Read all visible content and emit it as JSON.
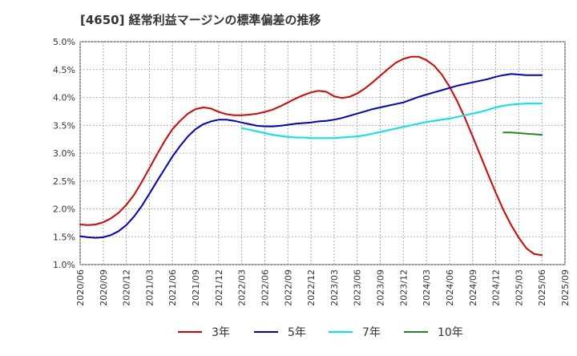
{
  "chart_data": {
    "type": "line",
    "title": "[4650]  経常利益マージンの標準偏差の推移",
    "xlabel": "",
    "ylabel": "",
    "ylim": [
      0.01,
      0.05
    ],
    "yticks": [
      "1.0%",
      "1.5%",
      "2.0%",
      "2.5%",
      "3.0%",
      "3.5%",
      "4.0%",
      "4.5%",
      "5.0%"
    ],
    "yticks_values": [
      0.01,
      0.015,
      0.02,
      0.025,
      0.03,
      0.035,
      0.04,
      0.045,
      0.05
    ],
    "xticks": [
      "2020/06",
      "2020/09",
      "2020/12",
      "2021/03",
      "2021/06",
      "2021/09",
      "2021/12",
      "2022/03",
      "2022/06",
      "2022/09",
      "2022/12",
      "2023/03",
      "2023/06",
      "2023/09",
      "2023/12",
      "2024/03",
      "2024/06",
      "2024/09",
      "2024/12",
      "2025/03",
      "2025/06",
      "2025/09"
    ],
    "grid": true,
    "legend_position": "bottom",
    "series": [
      {
        "name": "3年",
        "color": "#dd0000",
        "x": [
          "2020/06",
          "2020/07",
          "2020/08",
          "2020/09",
          "2020/10",
          "2020/11",
          "2020/12",
          "2021/01",
          "2021/02",
          "2021/03",
          "2021/04",
          "2021/05",
          "2021/06",
          "2021/07",
          "2021/08",
          "2021/09",
          "2021/10",
          "2021/11",
          "2021/12",
          "2022/01",
          "2022/02",
          "2022/03",
          "2022/04",
          "2022/05",
          "2022/06",
          "2022/07",
          "2022/08",
          "2022/09",
          "2022/10",
          "2022/11",
          "2022/12",
          "2023/01",
          "2023/02",
          "2023/03",
          "2023/04",
          "2023/05",
          "2023/06",
          "2023/07",
          "2023/08",
          "2023/09",
          "2023/10",
          "2023/11",
          "2023/12",
          "2024/01",
          "2024/02",
          "2024/03",
          "2024/04",
          "2024/05",
          "2024/06",
          "2024/07",
          "2024/08",
          "2024/09",
          "2024/10",
          "2024/11",
          "2024/12",
          "2025/01",
          "2025/02",
          "2025/03",
          "2025/04",
          "2025/05",
          "2025/06"
        ],
        "values": [
          0.0172,
          0.0171,
          0.0172,
          0.0176,
          0.0183,
          0.0193,
          0.0207,
          0.0225,
          0.0248,
          0.0273,
          0.0298,
          0.0322,
          0.0343,
          0.0358,
          0.0371,
          0.0379,
          0.0382,
          0.038,
          0.0374,
          0.037,
          0.0368,
          0.0368,
          0.0369,
          0.0371,
          0.0374,
          0.0378,
          0.0384,
          0.0391,
          0.0398,
          0.0404,
          0.0409,
          0.0412,
          0.041,
          0.0402,
          0.0399,
          0.0401,
          0.0407,
          0.0416,
          0.0427,
          0.0439,
          0.0451,
          0.0462,
          0.0469,
          0.0473,
          0.0473,
          0.0467,
          0.0457,
          0.0441,
          0.0419,
          0.0393,
          0.0363,
          0.033,
          0.0296,
          0.0262,
          0.0229,
          0.0198,
          0.0171,
          0.0148,
          0.0129,
          0.0119,
          0.0117
        ]
      },
      {
        "name": "5年",
        "color": "#0000cc",
        "x": [
          "2020/06",
          "2020/07",
          "2020/08",
          "2020/09",
          "2020/10",
          "2020/11",
          "2020/12",
          "2021/01",
          "2021/02",
          "2021/03",
          "2021/04",
          "2021/05",
          "2021/06",
          "2021/07",
          "2021/08",
          "2021/09",
          "2021/10",
          "2021/11",
          "2021/12",
          "2022/01",
          "2022/02",
          "2022/03",
          "2022/04",
          "2022/05",
          "2022/06",
          "2022/07",
          "2022/08",
          "2022/09",
          "2022/10",
          "2022/11",
          "2022/12",
          "2023/01",
          "2023/02",
          "2023/03",
          "2023/04",
          "2023/05",
          "2023/06",
          "2023/07",
          "2023/08",
          "2023/09",
          "2023/10",
          "2023/11",
          "2023/12",
          "2024/01",
          "2024/02",
          "2024/03",
          "2024/04",
          "2024/05",
          "2024/06",
          "2024/07",
          "2024/08",
          "2024/09",
          "2024/10",
          "2024/11",
          "2024/12",
          "2025/01",
          "2025/02",
          "2025/03",
          "2025/04",
          "2025/05",
          "2025/06"
        ],
        "values": [
          0.0151,
          0.0149,
          0.0148,
          0.0149,
          0.0153,
          0.016,
          0.0171,
          0.0186,
          0.0205,
          0.0227,
          0.025,
          0.0272,
          0.0294,
          0.0313,
          0.033,
          0.0343,
          0.0352,
          0.0357,
          0.036,
          0.036,
          0.0358,
          0.0355,
          0.0352,
          0.0349,
          0.0348,
          0.0348,
          0.0349,
          0.0351,
          0.0353,
          0.0354,
          0.0355,
          0.0357,
          0.0358,
          0.036,
          0.0363,
          0.0367,
          0.0371,
          0.0375,
          0.0379,
          0.0382,
          0.0385,
          0.0388,
          0.0391,
          0.0396,
          0.0401,
          0.0405,
          0.0409,
          0.0413,
          0.0417,
          0.0421,
          0.0424,
          0.0427,
          0.043,
          0.0433,
          0.0437,
          0.044,
          0.0442,
          0.0441,
          0.044,
          0.044,
          0.044
        ]
      },
      {
        "name": "7年",
        "color": "#00e5e5",
        "x": [
          "2022/03",
          "2022/04",
          "2022/05",
          "2022/06",
          "2022/07",
          "2022/08",
          "2022/09",
          "2022/10",
          "2022/11",
          "2022/12",
          "2023/01",
          "2023/02",
          "2023/03",
          "2023/04",
          "2023/05",
          "2023/06",
          "2023/07",
          "2023/08",
          "2023/09",
          "2023/10",
          "2023/11",
          "2023/12",
          "2024/01",
          "2024/02",
          "2024/03",
          "2024/04",
          "2024/05",
          "2024/06",
          "2024/07",
          "2024/08",
          "2024/09",
          "2024/10",
          "2024/11",
          "2024/12",
          "2025/01",
          "2025/02",
          "2025/03",
          "2025/04",
          "2025/05",
          "2025/06"
        ],
        "values": [
          0.0345,
          0.0342,
          0.0339,
          0.0336,
          0.0333,
          0.0331,
          0.0329,
          0.0328,
          0.0328,
          0.0327,
          0.0327,
          0.0327,
          0.0327,
          0.0328,
          0.0329,
          0.033,
          0.0332,
          0.0335,
          0.0338,
          0.0341,
          0.0344,
          0.0347,
          0.035,
          0.0353,
          0.0356,
          0.0358,
          0.036,
          0.0362,
          0.0365,
          0.0368,
          0.0371,
          0.0374,
          0.0378,
          0.0382,
          0.0385,
          0.0387,
          0.0388,
          0.0389,
          0.0389,
          0.0389
        ]
      },
      {
        "name": "10年",
        "color": "#228822",
        "x": [
          "2025/01",
          "2025/02",
          "2025/03",
          "2025/04",
          "2025/05",
          "2025/06"
        ],
        "values": [
          0.0337,
          0.0337,
          0.0336,
          0.0335,
          0.0334,
          0.0333
        ]
      }
    ]
  }
}
